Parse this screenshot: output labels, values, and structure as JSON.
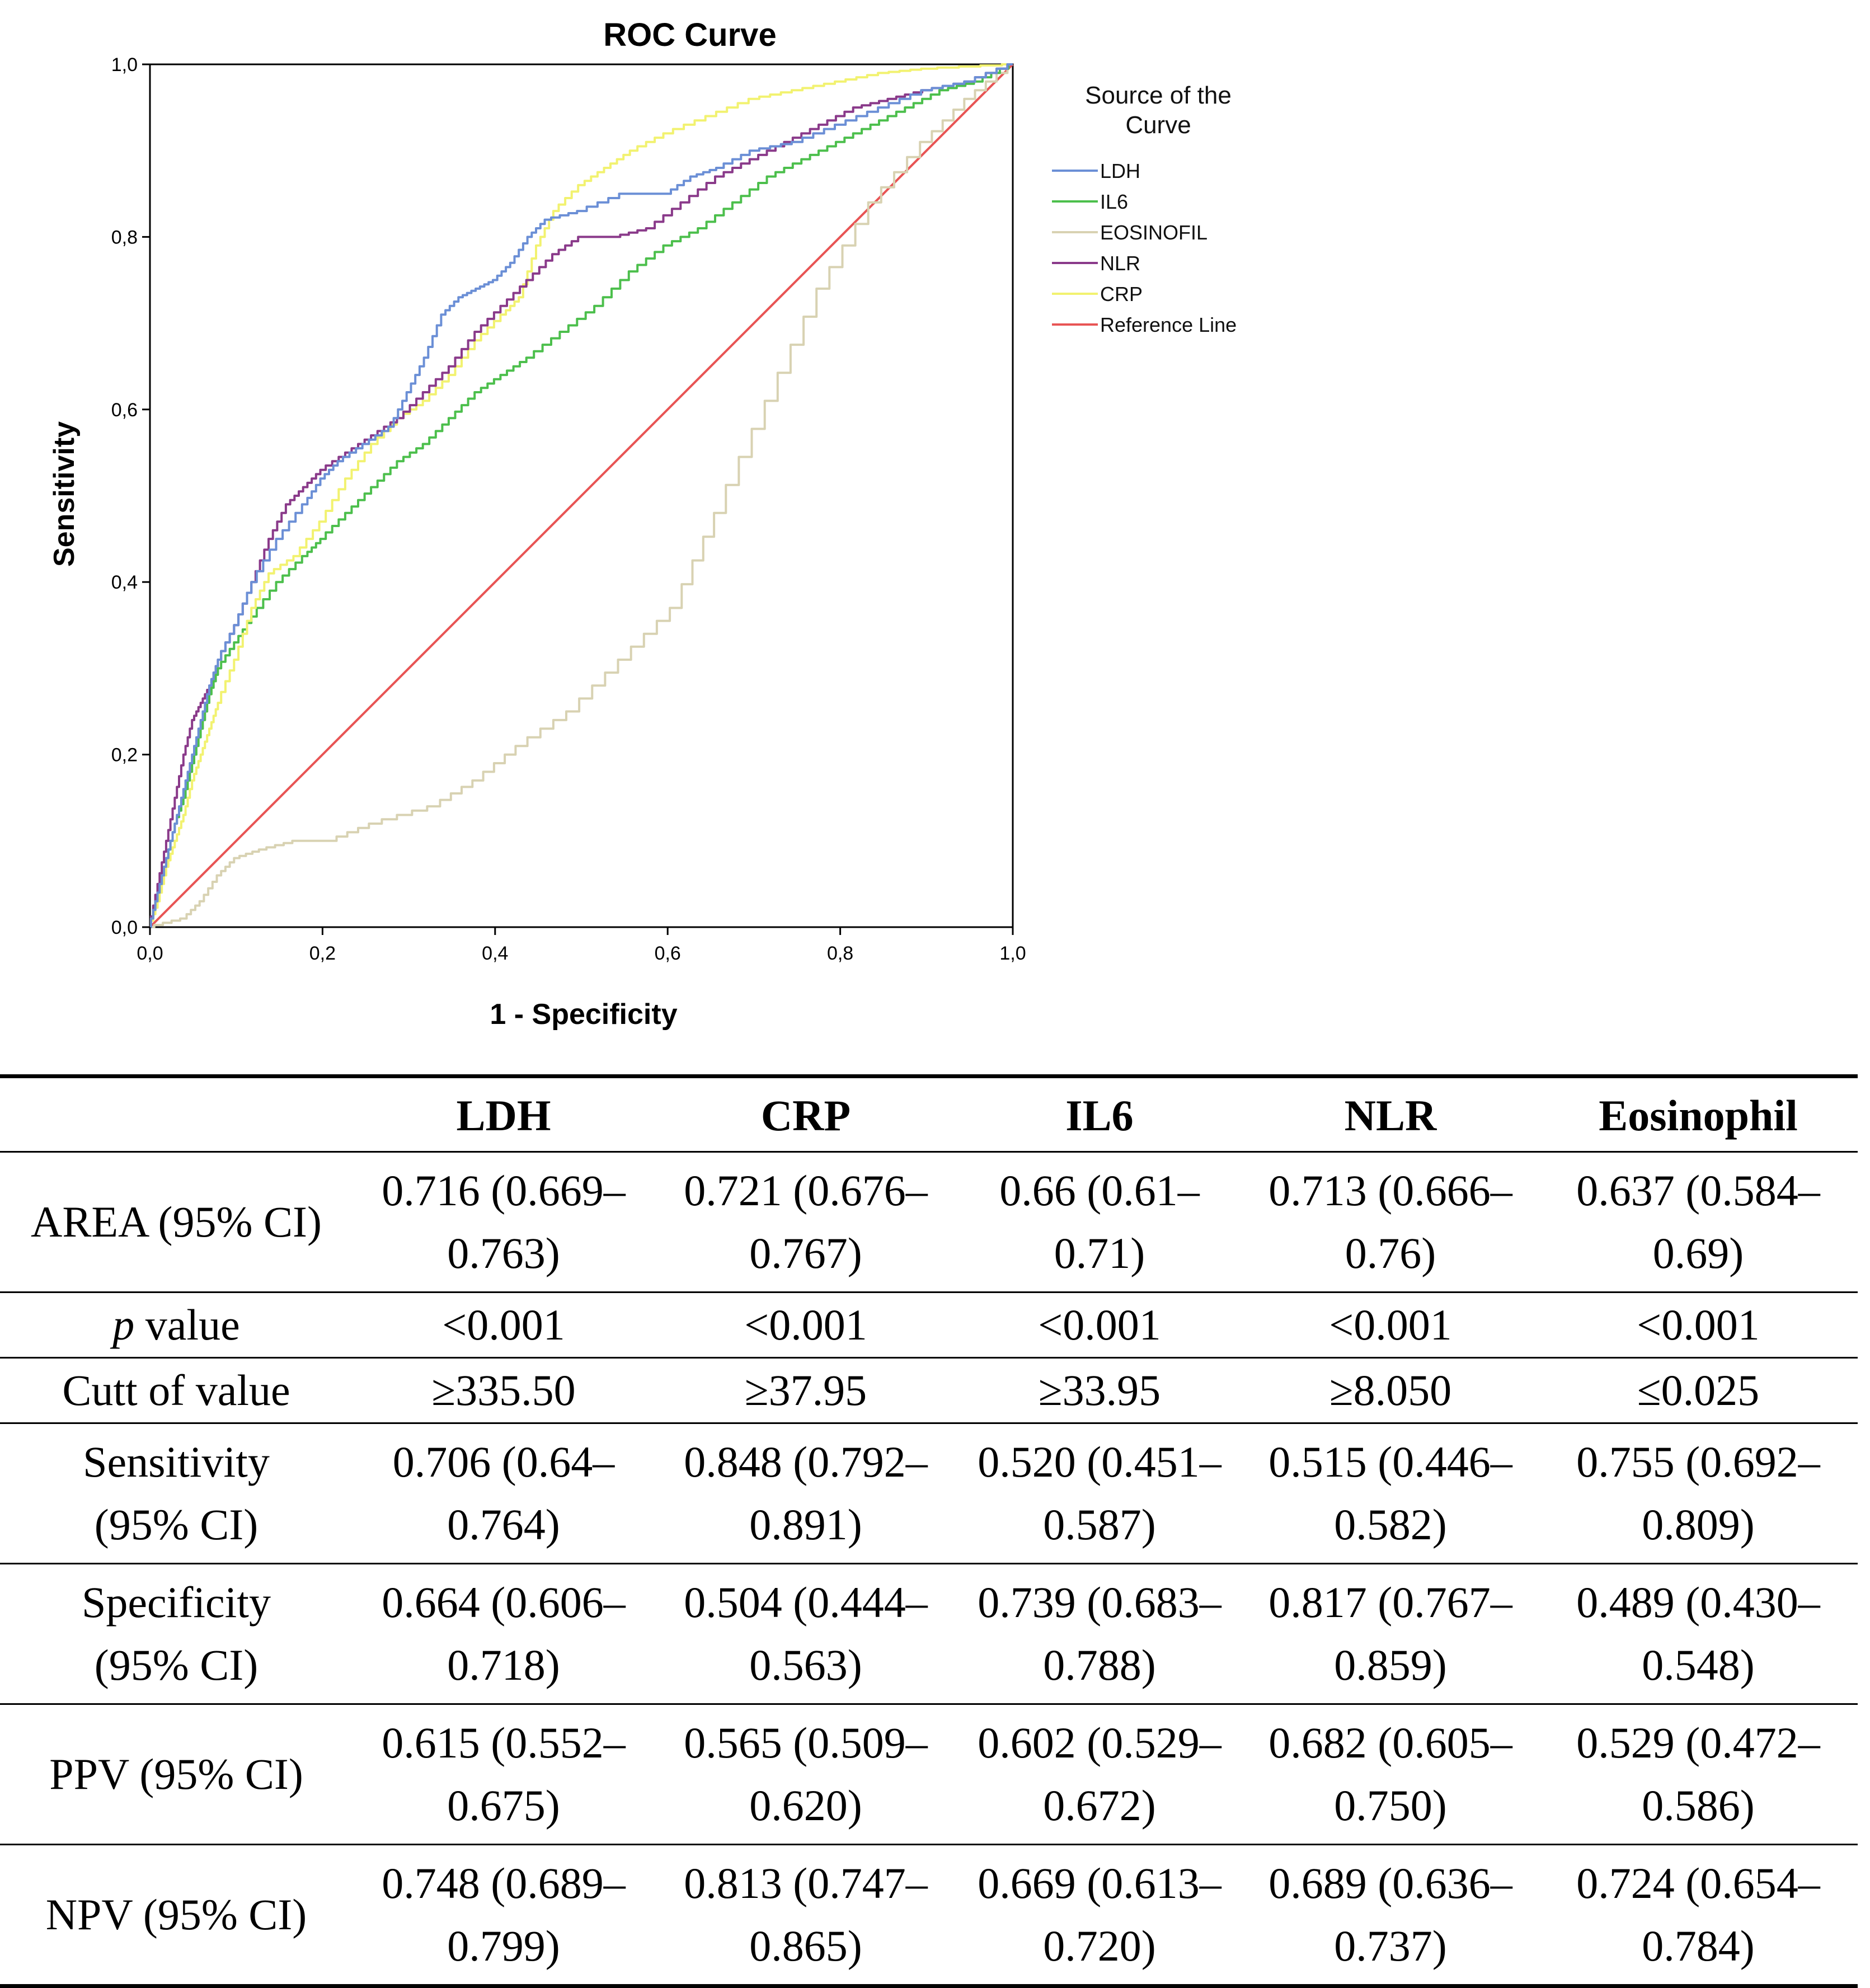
{
  "chart_data": {
    "type": "line",
    "title": "ROC Curve",
    "xlabel": "1 - Specificity",
    "ylabel": "Sensitivity",
    "xlim": [
      0,
      1
    ],
    "ylim": [
      0,
      1
    ],
    "x_ticks": [
      "0,0",
      "0,2",
      "0,4",
      "0,6",
      "0,8",
      "1,0"
    ],
    "y_ticks": [
      "0,0",
      "0,2",
      "0,4",
      "0,6",
      "0,8",
      "1,0"
    ],
    "grid": false,
    "legend": {
      "title_line1": "Source of the",
      "title_line2": "Curve",
      "placement": "right"
    },
    "series": [
      {
        "name": "LDH",
        "color": "#6b8fd6",
        "points": [
          [
            0,
            0
          ],
          [
            0.01,
            0.04
          ],
          [
            0.02,
            0.08
          ],
          [
            0.03,
            0.12
          ],
          [
            0.04,
            0.16
          ],
          [
            0.05,
            0.2
          ],
          [
            0.06,
            0.24
          ],
          [
            0.07,
            0.28
          ],
          [
            0.08,
            0.31
          ],
          [
            0.1,
            0.35
          ],
          [
            0.12,
            0.4
          ],
          [
            0.15,
            0.45
          ],
          [
            0.18,
            0.49
          ],
          [
            0.2,
            0.52
          ],
          [
            0.22,
            0.54
          ],
          [
            0.25,
            0.56
          ],
          [
            0.28,
            0.58
          ],
          [
            0.3,
            0.62
          ],
          [
            0.32,
            0.66
          ],
          [
            0.34,
            0.71
          ],
          [
            0.36,
            0.73
          ],
          [
            0.38,
            0.74
          ],
          [
            0.4,
            0.75
          ],
          [
            0.42,
            0.77
          ],
          [
            0.44,
            0.8
          ],
          [
            0.46,
            0.82
          ],
          [
            0.5,
            0.83
          ],
          [
            0.55,
            0.85
          ],
          [
            0.6,
            0.85
          ],
          [
            0.63,
            0.87
          ],
          [
            0.66,
            0.88
          ],
          [
            0.7,
            0.9
          ],
          [
            0.75,
            0.91
          ],
          [
            0.8,
            0.93
          ],
          [
            0.85,
            0.95
          ],
          [
            0.9,
            0.97
          ],
          [
            0.95,
            0.98
          ],
          [
            1,
            1
          ]
        ]
      },
      {
        "name": "IL6",
        "color": "#4cbf4c",
        "points": [
          [
            0,
            0
          ],
          [
            0.01,
            0.04
          ],
          [
            0.02,
            0.08
          ],
          [
            0.03,
            0.12
          ],
          [
            0.04,
            0.15
          ],
          [
            0.05,
            0.19
          ],
          [
            0.06,
            0.23
          ],
          [
            0.07,
            0.27
          ],
          [
            0.08,
            0.3
          ],
          [
            0.1,
            0.33
          ],
          [
            0.12,
            0.36
          ],
          [
            0.15,
            0.4
          ],
          [
            0.18,
            0.43
          ],
          [
            0.2,
            0.45
          ],
          [
            0.23,
            0.48
          ],
          [
            0.26,
            0.51
          ],
          [
            0.29,
            0.54
          ],
          [
            0.32,
            0.56
          ],
          [
            0.35,
            0.59
          ],
          [
            0.38,
            0.62
          ],
          [
            0.41,
            0.64
          ],
          [
            0.44,
            0.66
          ],
          [
            0.48,
            0.69
          ],
          [
            0.52,
            0.72
          ],
          [
            0.56,
            0.76
          ],
          [
            0.6,
            0.79
          ],
          [
            0.64,
            0.81
          ],
          [
            0.68,
            0.84
          ],
          [
            0.72,
            0.87
          ],
          [
            0.76,
            0.89
          ],
          [
            0.8,
            0.91
          ],
          [
            0.84,
            0.93
          ],
          [
            0.88,
            0.95
          ],
          [
            0.92,
            0.97
          ],
          [
            0.96,
            0.98
          ],
          [
            1,
            1
          ]
        ]
      },
      {
        "name": "EOSINOFIL",
        "color": "#d8d2b2",
        "points": [
          [
            0,
            0
          ],
          [
            0.04,
            0.01
          ],
          [
            0.06,
            0.03
          ],
          [
            0.08,
            0.06
          ],
          [
            0.1,
            0.08
          ],
          [
            0.13,
            0.09
          ],
          [
            0.17,
            0.1
          ],
          [
            0.21,
            0.1
          ],
          [
            0.26,
            0.12
          ],
          [
            0.33,
            0.14
          ],
          [
            0.38,
            0.17
          ],
          [
            0.43,
            0.21
          ],
          [
            0.49,
            0.25
          ],
          [
            0.55,
            0.31
          ],
          [
            0.61,
            0.37
          ],
          [
            0.66,
            0.48
          ],
          [
            0.72,
            0.61
          ],
          [
            0.78,
            0.74
          ],
          [
            0.84,
            0.84
          ],
          [
            0.9,
            0.91
          ],
          [
            0.95,
            0.96
          ],
          [
            1,
            1
          ]
        ]
      },
      {
        "name": "NLR",
        "color": "#8a3a8a",
        "points": [
          [
            0,
            0
          ],
          [
            0.01,
            0.05
          ],
          [
            0.02,
            0.1
          ],
          [
            0.03,
            0.15
          ],
          [
            0.04,
            0.2
          ],
          [
            0.05,
            0.24
          ],
          [
            0.06,
            0.26
          ],
          [
            0.07,
            0.28
          ],
          [
            0.08,
            0.31
          ],
          [
            0.1,
            0.35
          ],
          [
            0.12,
            0.4
          ],
          [
            0.14,
            0.45
          ],
          [
            0.16,
            0.49
          ],
          [
            0.18,
            0.51
          ],
          [
            0.2,
            0.53
          ],
          [
            0.23,
            0.55
          ],
          [
            0.26,
            0.57
          ],
          [
            0.29,
            0.59
          ],
          [
            0.32,
            0.62
          ],
          [
            0.35,
            0.65
          ],
          [
            0.38,
            0.69
          ],
          [
            0.41,
            0.72
          ],
          [
            0.44,
            0.75
          ],
          [
            0.47,
            0.78
          ],
          [
            0.5,
            0.8
          ],
          [
            0.54,
            0.8
          ],
          [
            0.58,
            0.81
          ],
          [
            0.62,
            0.84
          ],
          [
            0.66,
            0.87
          ],
          [
            0.7,
            0.89
          ],
          [
            0.74,
            0.91
          ],
          [
            0.78,
            0.93
          ],
          [
            0.82,
            0.95
          ],
          [
            0.86,
            0.96
          ],
          [
            0.9,
            0.97
          ],
          [
            0.95,
            0.98
          ],
          [
            1,
            1
          ]
        ]
      },
      {
        "name": "CRP",
        "color": "#f2f270",
        "points": [
          [
            0,
            0
          ],
          [
            0.01,
            0.03
          ],
          [
            0.02,
            0.07
          ],
          [
            0.03,
            0.1
          ],
          [
            0.04,
            0.13
          ],
          [
            0.05,
            0.17
          ],
          [
            0.06,
            0.2
          ],
          [
            0.07,
            0.23
          ],
          [
            0.08,
            0.26
          ],
          [
            0.1,
            0.31
          ],
          [
            0.12,
            0.37
          ],
          [
            0.14,
            0.41
          ],
          [
            0.17,
            0.43
          ],
          [
            0.2,
            0.47
          ],
          [
            0.23,
            0.52
          ],
          [
            0.26,
            0.56
          ],
          [
            0.29,
            0.59
          ],
          [
            0.32,
            0.61
          ],
          [
            0.35,
            0.64
          ],
          [
            0.38,
            0.68
          ],
          [
            0.41,
            0.71
          ],
          [
            0.43,
            0.73
          ],
          [
            0.45,
            0.79
          ],
          [
            0.47,
            0.83
          ],
          [
            0.5,
            0.86
          ],
          [
            0.53,
            0.88
          ],
          [
            0.56,
            0.9
          ],
          [
            0.6,
            0.92
          ],
          [
            0.65,
            0.94
          ],
          [
            0.7,
            0.96
          ],
          [
            0.75,
            0.97
          ],
          [
            0.8,
            0.98
          ],
          [
            0.85,
            0.99
          ],
          [
            0.9,
            0.995
          ],
          [
            1,
            1
          ]
        ]
      },
      {
        "name": "Reference Line",
        "color": "#e85454",
        "points": [
          [
            0,
            0
          ],
          [
            1,
            1
          ]
        ]
      }
    ]
  },
  "table": {
    "headers": [
      "",
      "LDH",
      "CRP",
      "IL6",
      "NLR",
      "Eosinophil"
    ],
    "rows": [
      {
        "label": [
          "AREA (95% CI)"
        ],
        "cells": [
          [
            "0.716 (0.669–",
            "0.763)"
          ],
          [
            "0.721 (0.676–",
            "0.767)"
          ],
          [
            "0.66 (0.61–",
            "0.71)"
          ],
          [
            "0.713 (0.666–",
            "0.76)"
          ],
          [
            "0.637 (0.584–",
            "0.69)"
          ]
        ]
      },
      {
        "label_italic": "p",
        "label_rest": " value",
        "cells": [
          [
            "<0.001"
          ],
          [
            "<0.001"
          ],
          [
            "<0.001"
          ],
          [
            "<0.001"
          ],
          [
            "<0.001"
          ]
        ]
      },
      {
        "label": [
          "Cutt of value"
        ],
        "cells": [
          [
            "≥335.50"
          ],
          [
            "≥37.95"
          ],
          [
            "≥33.95"
          ],
          [
            "≥8.050"
          ],
          [
            "≤0.025"
          ]
        ]
      },
      {
        "label": [
          "Sensitivity",
          "(95% CI)"
        ],
        "cells": [
          [
            "0.706 (0.64–",
            "0.764)"
          ],
          [
            "0.848 (0.792–",
            "0.891)"
          ],
          [
            "0.520 (0.451–",
            "0.587)"
          ],
          [
            "0.515 (0.446–",
            "0.582)"
          ],
          [
            "0.755 (0.692–",
            "0.809)"
          ]
        ]
      },
      {
        "label": [
          "Specificity",
          "(95% CI)"
        ],
        "cells": [
          [
            "0.664 (0.606–",
            "0.718)"
          ],
          [
            "0.504 (0.444–",
            "0.563)"
          ],
          [
            "0.739 (0.683–",
            "0.788)"
          ],
          [
            "0.817 (0.767–",
            "0.859)"
          ],
          [
            "0.489 (0.430–",
            "0.548)"
          ]
        ]
      },
      {
        "label": [
          "PPV (95% CI)"
        ],
        "cells": [
          [
            "0.615 (0.552–",
            "0.675)"
          ],
          [
            "0.565 (0.509–",
            "0.620)"
          ],
          [
            "0.602 (0.529–",
            "0.672)"
          ],
          [
            "0.682 (0.605–",
            "0.750)"
          ],
          [
            "0.529 (0.472–",
            "0.586)"
          ]
        ]
      },
      {
        "label": [
          "NPV (95% CI)"
        ],
        "cells": [
          [
            "0.748 (0.689–",
            "0.799)"
          ],
          [
            "0.813 (0.747–",
            "0.865)"
          ],
          [
            "0.669 (0.613–",
            "0.720)"
          ],
          [
            "0.689 (0.636–",
            "0.737)"
          ],
          [
            "0.724 (0.654–",
            "0.784)"
          ]
        ]
      }
    ]
  }
}
